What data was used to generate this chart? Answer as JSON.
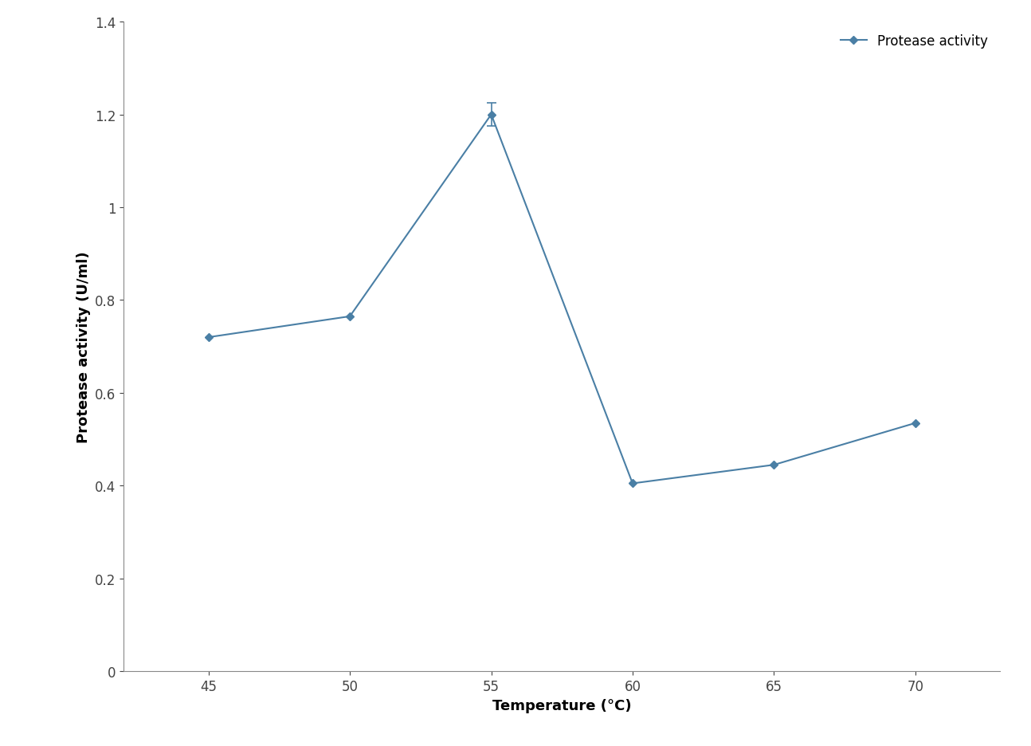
{
  "x": [
    45,
    50,
    55,
    60,
    65,
    70
  ],
  "y": [
    0.72,
    0.765,
    1.2,
    0.405,
    0.445,
    0.535
  ],
  "yerr": [
    0.0,
    0.0,
    0.025,
    0.0,
    0.0,
    0.0
  ],
  "line_color": "#4a7fa5",
  "marker": "D",
  "marker_size": 5,
  "line_width": 1.5,
  "xlabel": "Temperature (°C)",
  "ylabel": "Protease activity (U/ml)",
  "legend_label": "Protease activity",
  "xlim": [
    42,
    73
  ],
  "ylim": [
    0,
    1.4
  ],
  "yticks": [
    0,
    0.2,
    0.4,
    0.6,
    0.8,
    1.0,
    1.2,
    1.4
  ],
  "ytick_labels": [
    "0",
    "0.2",
    "0.4",
    "0.6",
    "0.8",
    "1",
    "1.2",
    "1.4"
  ],
  "xticks": [
    45,
    50,
    55,
    60,
    65,
    70
  ],
  "xlabel_fontsize": 13,
  "ylabel_fontsize": 13,
  "tick_fontsize": 12,
  "legend_fontsize": 12,
  "spine_color": "#888888",
  "background_color": "#ffffff"
}
